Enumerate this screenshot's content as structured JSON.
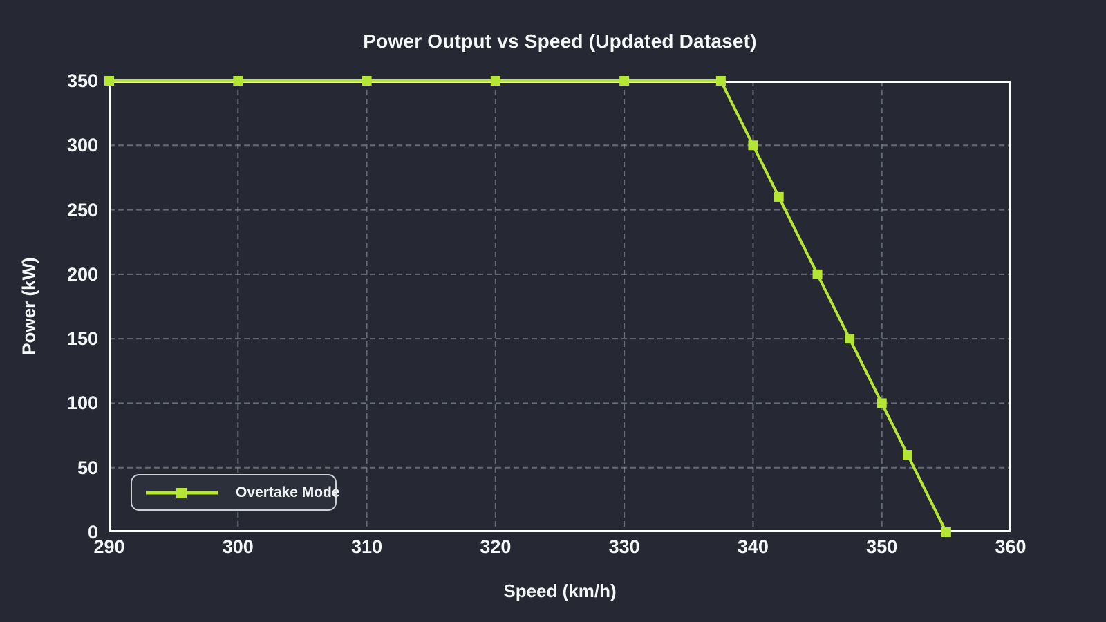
{
  "chart_data": {
    "type": "line",
    "title": "Power Output vs Speed (Updated Dataset)",
    "xlabel": "Speed (km/h)",
    "ylabel": "Power (kW)",
    "xlim": [
      290,
      360
    ],
    "ylim": [
      0,
      350
    ],
    "xticks": [
      290,
      300,
      310,
      320,
      330,
      340,
      350,
      360
    ],
    "yticks": [
      0,
      50,
      100,
      150,
      200,
      250,
      300,
      350
    ],
    "x_gridlines": [
      300,
      310,
      320,
      330,
      340,
      350
    ],
    "y_gridlines": [
      50,
      100,
      150,
      200,
      250,
      300
    ],
    "grid": true,
    "legend_position": "lower-left",
    "x": [
      290,
      300,
      310,
      320,
      330,
      337.5,
      340,
      342,
      345,
      347.5,
      350,
      352,
      355
    ],
    "series": [
      {
        "name": "Overtake Mode",
        "marker": "square",
        "color": "#b5e634",
        "values": [
          350,
          350,
          350,
          350,
          350,
          350,
          300,
          260,
          200,
          150,
          100,
          60,
          0
        ]
      }
    ],
    "colors": {
      "background": "#262933",
      "spine": "#ffffff",
      "grid": "#9aa2ac",
      "text": "#f6f7f9",
      "legend_background": "#2c303a",
      "legend_border": "#e8ebef"
    }
  }
}
